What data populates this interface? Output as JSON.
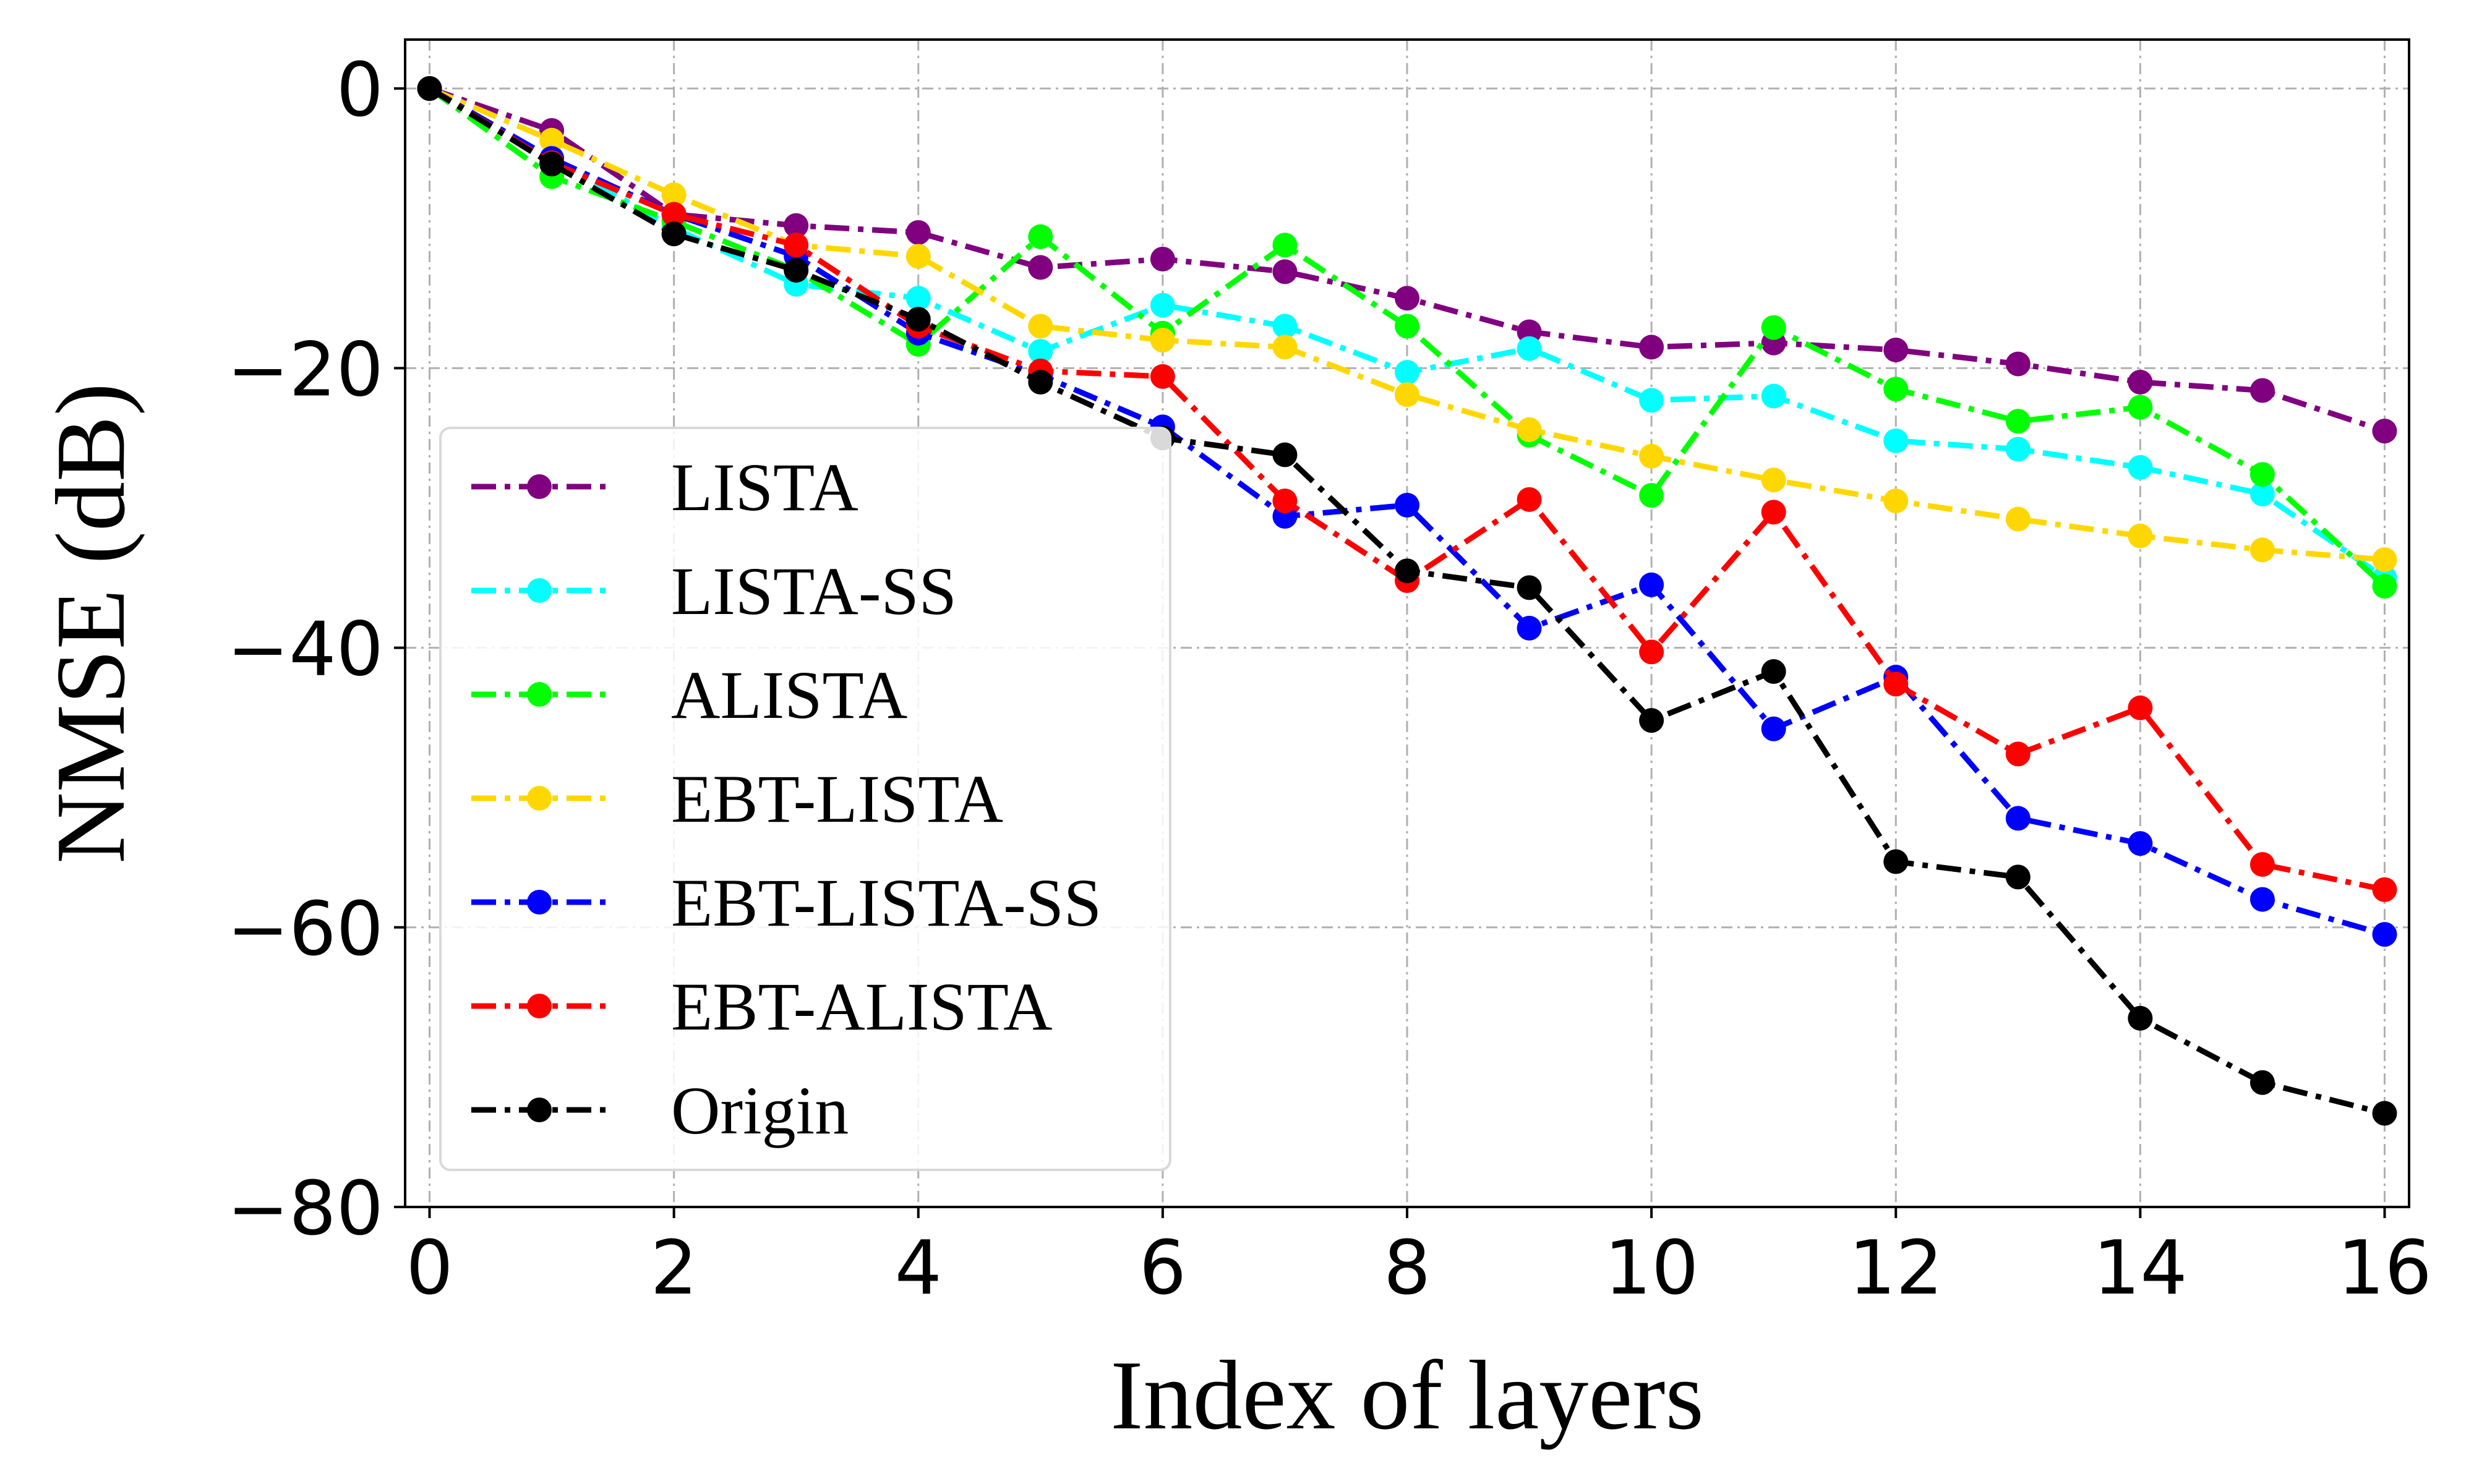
{
  "chart_data": {
    "type": "line",
    "title": "",
    "xlabel": "Index of layers",
    "ylabel": "NMSE (dB)",
    "xlim": [
      -0.2,
      16.2
    ],
    "ylim": [
      -80,
      3.5
    ],
    "xticks": [
      0,
      2,
      4,
      6,
      8,
      10,
      12,
      14,
      16
    ],
    "yticks": [
      0,
      -20,
      -40,
      -60,
      -80
    ],
    "xtick_labels": [
      "0",
      "2",
      "4",
      "6",
      "8",
      "10",
      "12",
      "14",
      "16"
    ],
    "ytick_labels": [
      "0",
      "−20",
      "−40",
      "−60",
      "−80"
    ],
    "grid": true,
    "legend_position": "lower-left",
    "x": [
      0,
      1,
      2,
      3,
      4,
      5,
      6,
      7,
      8,
      9,
      10,
      11,
      12,
      13,
      14,
      15,
      16
    ],
    "series": [
      {
        "name": "LISTA",
        "color": "#800080",
        "values": [
          0,
          -3,
          -9,
          -9.8,
          -10.3,
          -12.8,
          -12.2,
          -13.1,
          -15,
          -17.4,
          -18.5,
          -18.2,
          -18.7,
          -19.7,
          -21,
          -21.6,
          -24.5
        ]
      },
      {
        "name": "LISTA-SS",
        "color": "#00ffff",
        "values": [
          0,
          -5,
          -10,
          -14,
          -15,
          -18.8,
          -15.5,
          -17,
          -20.3,
          -18.6,
          -22.3,
          -22,
          -25.2,
          -25.8,
          -27.1,
          -29,
          -35
        ]
      },
      {
        "name": "ALISTA",
        "color": "#00ff00",
        "values": [
          0,
          -6.3,
          -9.5,
          -13,
          -18.3,
          -10.6,
          -17.5,
          -11.2,
          -17,
          -24.8,
          -29.1,
          -17.1,
          -21.5,
          -23.8,
          -22.8,
          -27.6,
          -35.6
        ]
      },
      {
        "name": "EBT-LISTA",
        "color": "#ffd700",
        "values": [
          0,
          -3.7,
          -7.6,
          -11.2,
          -12,
          -17,
          -18,
          -18.5,
          -21.9,
          -24.4,
          -26.3,
          -28,
          -29.5,
          -30.8,
          -32,
          -33,
          -33.7
        ]
      },
      {
        "name": "EBT-LISTA-SS",
        "color": "#0000ff",
        "values": [
          0,
          -5,
          -9,
          -12,
          -17.5,
          -20.5,
          -24.2,
          -30.6,
          -29.8,
          -38.6,
          -35.5,
          -45.8,
          -42.1,
          -52.2,
          -54,
          -58,
          -60.5
        ]
      },
      {
        "name": "EBT-ALISTA",
        "color": "#ff0000",
        "values": [
          0,
          -5.3,
          -9,
          -11.2,
          -17,
          -20.2,
          -20.6,
          -29.5,
          -35.2,
          -29.4,
          -40.3,
          -30.3,
          -42.6,
          -47.6,
          -44.3,
          -55.5,
          -57.3
        ]
      },
      {
        "name": "Origin",
        "color": "#000000",
        "values": [
          0,
          -5.4,
          -10.4,
          -13,
          -16.5,
          -21,
          -25,
          -26.2,
          -34.5,
          -35.7,
          -45.2,
          -41.7,
          -55.3,
          -56.4,
          -66.5,
          -71.1,
          -73.3
        ]
      }
    ]
  }
}
